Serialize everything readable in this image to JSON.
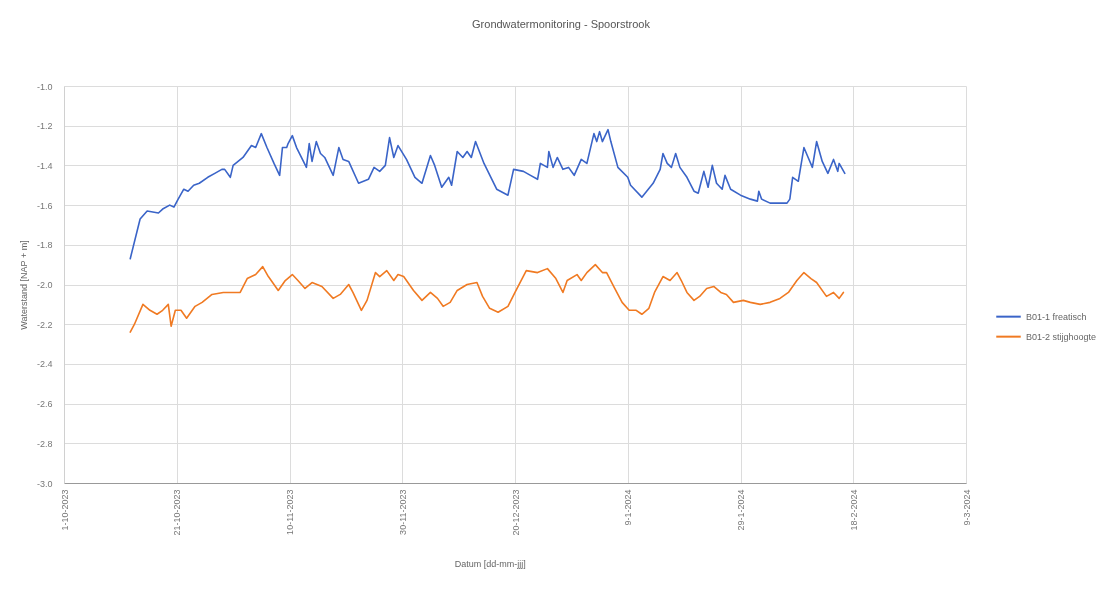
{
  "chart_data": {
    "type": "line",
    "title": "Grondwatermonitoring - Spoorstrook",
    "xlabel": "Datum [dd-mm-jjj]",
    "ylabel": "Waterstand [NAP + m]",
    "xlim": [
      "2023-10-01",
      "2024-03-09"
    ],
    "xticks": [
      {
        "value": "2023-10-01",
        "label": "1-10-2023"
      },
      {
        "value": "2023-10-21",
        "label": "21-10-2023"
      },
      {
        "value": "2023-11-10",
        "label": "10-11-2023"
      },
      {
        "value": "2023-11-30",
        "label": "30-11-2023"
      },
      {
        "value": "2023-12-20",
        "label": "20-12-2023"
      },
      {
        "value": "2024-01-09",
        "label": "9-1-2024"
      },
      {
        "value": "2024-01-29",
        "label": "29-1-2024"
      },
      {
        "value": "2024-02-18",
        "label": "18-2-2024"
      },
      {
        "value": "2024-03-09",
        "label": "9-3-2024"
      }
    ],
    "ylim": [
      -3,
      -1
    ],
    "yticks": [
      {
        "value": -1,
        "label": "-1.0"
      },
      -1.2,
      -1.4,
      -1.6,
      -1.8,
      {
        "value": -2,
        "label": "-2.0"
      },
      -2.2,
      -2.4,
      -2.6,
      -2.8,
      {
        "value": -3,
        "label": "-3.0"
      }
    ],
    "grid": true,
    "legend": "right",
    "series": [
      {
        "name": "B01-1 freatisch",
        "color": "#3a64c8",
        "x": [
          "2023-10-12T18:00",
          "2023-10-14T12:00",
          "2023-10-15T18:00",
          "2023-10-17T18:00",
          "2023-10-18T12:00",
          "2023-10-19T18:00",
          "2023-10-20T12:00",
          "2023-10-21T06:00",
          "2023-10-22T06:00",
          "2023-10-23T00:00",
          "2023-10-24T00:00",
          "2023-10-25T00:00",
          "2023-10-26T12:00",
          "2023-10-27T18:00",
          "2023-10-29T00:00",
          "2023-10-29T12:00",
          "2023-10-30T12:00",
          "2023-10-31T00:00",
          "2023-11-01T18:00",
          "2023-11-03T06:00",
          "2023-11-04T00:00",
          "2023-11-05T00:00",
          "2023-11-06T00:00",
          "2023-11-07T06:00",
          "2023-11-08T06:00",
          "2023-11-08T18:00",
          "2023-11-09T12:00",
          "2023-11-09T18:00",
          "2023-11-10T12:00",
          "2023-11-11T06:00",
          "2023-11-13T00:00",
          "2023-11-13T12:00",
          "2023-11-14T00:00",
          "2023-11-14T18:00",
          "2023-11-15T12:00",
          "2023-11-16T06:00",
          "2023-11-17T18:00",
          "2023-11-18T18:00",
          "2023-11-19T12:00",
          "2023-11-20T12:00",
          "2023-11-22T06:00",
          "2023-11-24T00:00",
          "2023-11-25T00:00",
          "2023-11-26T00:00",
          "2023-11-27T00:00",
          "2023-11-27T18:00",
          "2023-11-28T12:00",
          "2023-11-29T06:00",
          "2023-11-30T18:00",
          "2023-12-02T06:00",
          "2023-12-03T12:00",
          "2023-12-05T00:00",
          "2023-12-05T18:00",
          "2023-12-07T00:00",
          "2023-12-08T06:00",
          "2023-12-08T18:00",
          "2023-12-09T18:00",
          "2023-12-10T18:00",
          "2023-12-11T12:00",
          "2023-12-12T06:00",
          "2023-12-13T00:00",
          "2023-12-14T12:00",
          "2023-12-16T18:00",
          "2023-12-18T18:00",
          "2023-12-19T18:00",
          "2023-12-21T12:00",
          "2023-12-22T18:00",
          "2023-12-24T00:00",
          "2023-12-24T12:00",
          "2023-12-25T18:00",
          "2023-12-26T00:00",
          "2023-12-26T18:00",
          "2023-12-27T12:00",
          "2023-12-28T12:00",
          "2023-12-29T12:00",
          "2023-12-30T12:00",
          "2023-12-31T18:00",
          "2024-01-01T18:00",
          "2024-01-03T00:00",
          "2024-01-03T12:00",
          "2024-01-04T00:00",
          "2024-01-04T12:00",
          "2024-01-05T12:00",
          "2024-01-06T00:00",
          "2024-01-07T06:00",
          "2024-01-09T00:00",
          "2024-01-09T12:00",
          "2024-01-11T12:00",
          "2024-01-13T12:00",
          "2024-01-14T18:00",
          "2024-01-15T06:00",
          "2024-01-16T00:00",
          "2024-01-16T18:00",
          "2024-01-17T12:00",
          "2024-01-18T06:00",
          "2024-01-19T12:00",
          "2024-01-20T18:00",
          "2024-01-21T12:00",
          "2024-01-22T12:00",
          "2024-01-23T06:00",
          "2024-01-24T00:00",
          "2024-01-24T18:00",
          "2024-01-25T18:00",
          "2024-01-26T06:00",
          "2024-01-27T06:00",
          "2024-01-29T00:00",
          "2024-01-30T18:00",
          "2024-02-01T00:00",
          "2024-02-01T06:00",
          "2024-02-01T18:00",
          "2024-02-03T06:00",
          "2024-02-06T06:00",
          "2024-02-06T18:00",
          "2024-02-07T06:00",
          "2024-02-07T18:00",
          "2024-02-08T06:00",
          "2024-02-09T06:00",
          "2024-02-10T00:00",
          "2024-02-10T18:00",
          "2024-02-11T12:00",
          "2024-02-12T12:00",
          "2024-02-13T12:00",
          "2024-02-14T12:00",
          "2024-02-15T06:00",
          "2024-02-15T12:00",
          "2024-02-16T12:00"
        ],
        "values": [
          -1.87,
          -1.67,
          -1.63,
          -1.64,
          -1.62,
          -1.6,
          -1.61,
          -1.57,
          -1.52,
          -1.53,
          -1.5,
          -1.49,
          -1.46,
          -1.44,
          -1.42,
          -1.42,
          -1.46,
          -1.4,
          -1.36,
          -1.3,
          -1.31,
          -1.24,
          -1.31,
          -1.39,
          -1.45,
          -1.31,
          -1.31,
          -1.29,
          -1.25,
          -1.31,
          -1.41,
          -1.29,
          -1.38,
          -1.28,
          -1.34,
          -1.36,
          -1.45,
          -1.31,
          -1.37,
          -1.38,
          -1.49,
          -1.47,
          -1.41,
          -1.43,
          -1.4,
          -1.26,
          -1.36,
          -1.3,
          -1.37,
          -1.46,
          -1.49,
          -1.35,
          -1.4,
          -1.51,
          -1.46,
          -1.5,
          -1.33,
          -1.36,
          -1.33,
          -1.36,
          -1.28,
          -1.39,
          -1.52,
          -1.55,
          -1.42,
          -1.43,
          -1.45,
          -1.47,
          -1.39,
          -1.41,
          -1.33,
          -1.41,
          -1.36,
          -1.42,
          -1.41,
          -1.45,
          -1.37,
          -1.39,
          -1.24,
          -1.28,
          -1.23,
          -1.28,
          -1.22,
          -1.28,
          -1.41,
          -1.46,
          -1.5,
          -1.56,
          -1.49,
          -1.42,
          -1.34,
          -1.39,
          -1.41,
          -1.34,
          -1.41,
          -1.46,
          -1.53,
          -1.54,
          -1.43,
          -1.51,
          -1.4,
          -1.49,
          -1.52,
          -1.45,
          -1.52,
          -1.55,
          -1.57,
          -1.58,
          -1.53,
          -1.57,
          -1.59,
          -1.59,
          -1.57,
          -1.46,
          -1.47,
          -1.48,
          -1.31,
          -1.36,
          -1.41,
          -1.28,
          -1.38,
          -1.44,
          -1.37,
          -1.43,
          -1.39,
          -1.44
        ]
      },
      {
        "name": "B01-2 stijghoogte",
        "color": "#f07a22",
        "x": [
          "2023-10-12T18:00",
          "2023-10-13T12:00",
          "2023-10-15T00:00",
          "2023-10-16T06:00",
          "2023-10-17T12:00",
          "2023-10-18T12:00",
          "2023-10-19T12:00",
          "2023-10-20T00:00",
          "2023-10-20T18:00",
          "2023-10-21T18:00",
          "2023-10-22T18:00",
          "2023-10-24T06:00",
          "2023-10-25T12:00",
          "2023-10-27T06:00",
          "2023-10-29T06:00",
          "2023-10-31T00:00",
          "2023-11-01T06:00",
          "2023-11-02T12:00",
          "2023-11-04T00:00",
          "2023-11-05T06:00",
          "2023-11-06T06:00",
          "2023-11-08T00:00",
          "2023-11-09T06:00",
          "2023-11-10T12:00",
          "2023-11-11T12:00",
          "2023-11-12T18:00",
          "2023-11-14T00:00",
          "2023-11-15T18:00",
          "2023-11-17T18:00",
          "2023-11-19T00:00",
          "2023-11-20T12:00",
          "2023-11-21T06:00",
          "2023-11-22T18:00",
          "2023-11-23T18:00",
          "2023-11-25T06:00",
          "2023-11-26T00:00",
          "2023-11-27T06:00",
          "2023-11-28T12:00",
          "2023-11-29T06:00",
          "2023-11-30T06:00",
          "2023-12-02T00:00",
          "2023-12-03T12:00",
          "2023-12-05T00:00",
          "2023-12-06T06:00",
          "2023-12-07T06:00",
          "2023-12-08T12:00",
          "2023-12-09T18:00",
          "2023-12-11T12:00",
          "2023-12-13T06:00",
          "2023-12-14T06:00",
          "2023-12-15T12:00",
          "2023-12-17T00:00",
          "2023-12-18T18:00",
          "2023-12-20T00:00",
          "2023-12-22T00:00",
          "2023-12-24T00:00",
          "2023-12-25T18:00",
          "2023-12-27T06:00",
          "2023-12-28T12:00",
          "2023-12-29T06:00",
          "2023-12-31T00:00",
          "2023-12-31T18:00",
          "2024-01-01T18:00",
          "2024-01-03T06:00",
          "2024-01-04T12:00",
          "2024-01-05T06:00",
          "2024-01-06T12:00",
          "2024-01-08T00:00",
          "2024-01-09T06:00",
          "2024-01-10T12:00",
          "2024-01-11T12:00",
          "2024-01-12T18:00",
          "2024-01-13T18:00",
          "2024-01-15T06:00",
          "2024-01-16T12:00",
          "2024-01-17T18:00",
          "2024-01-18T12:00",
          "2024-01-19T12:00",
          "2024-01-20T18:00",
          "2024-01-21T18:00",
          "2024-01-23T00:00",
          "2024-01-24T06:00",
          "2024-01-25T12:00",
          "2024-01-26T12:00",
          "2024-01-27T18:00",
          "2024-01-29T12:00",
          "2024-01-30T18:00",
          "2024-02-01T12:00",
          "2024-02-03T06:00",
          "2024-02-05T00:00",
          "2024-02-06T12:00",
          "2024-02-08T00:00",
          "2024-02-09T06:00",
          "2024-02-10T12:00",
          "2024-02-11T12:00",
          "2024-02-13T06:00",
          "2024-02-14T12:00",
          "2024-02-15T12:00",
          "2024-02-16T06:00"
        ],
        "values": [
          -2.24,
          -2.2,
          -2.1,
          -2.13,
          -2.15,
          -2.13,
          -2.1,
          -2.21,
          -2.13,
          -2.13,
          -2.17,
          -2.11,
          -2.09,
          -2.05,
          -2.04,
          -2.04,
          -2.04,
          -1.97,
          -1.95,
          -1.91,
          -1.96,
          -2.03,
          -1.98,
          -1.95,
          -1.98,
          -2.02,
          -1.99,
          -2.01,
          -2.07,
          -2.05,
          -2.0,
          -2.04,
          -2.13,
          -2.08,
          -1.94,
          -1.96,
          -1.93,
          -1.98,
          -1.95,
          -1.96,
          -2.03,
          -2.08,
          -2.04,
          -2.07,
          -2.11,
          -2.09,
          -2.03,
          -2.0,
          -1.99,
          -2.06,
          -2.12,
          -2.14,
          -2.11,
          -2.04,
          -1.93,
          -1.94,
          -1.92,
          -1.97,
          -2.04,
          -1.98,
          -1.95,
          -1.98,
          -1.94,
          -1.9,
          -1.94,
          -1.94,
          -2.01,
          -2.09,
          -2.13,
          -2.13,
          -2.15,
          -2.12,
          -2.04,
          -1.96,
          -1.98,
          -1.94,
          -1.98,
          -2.04,
          -2.08,
          -2.06,
          -2.02,
          -2.01,
          -2.04,
          -2.05,
          -2.09,
          -2.08,
          -2.09,
          -2.1,
          -2.09,
          -2.07,
          -2.04,
          -1.98,
          -1.94,
          -1.97,
          -1.99,
          -2.06,
          -2.04,
          -2.07,
          -2.04
        ]
      }
    ]
  }
}
